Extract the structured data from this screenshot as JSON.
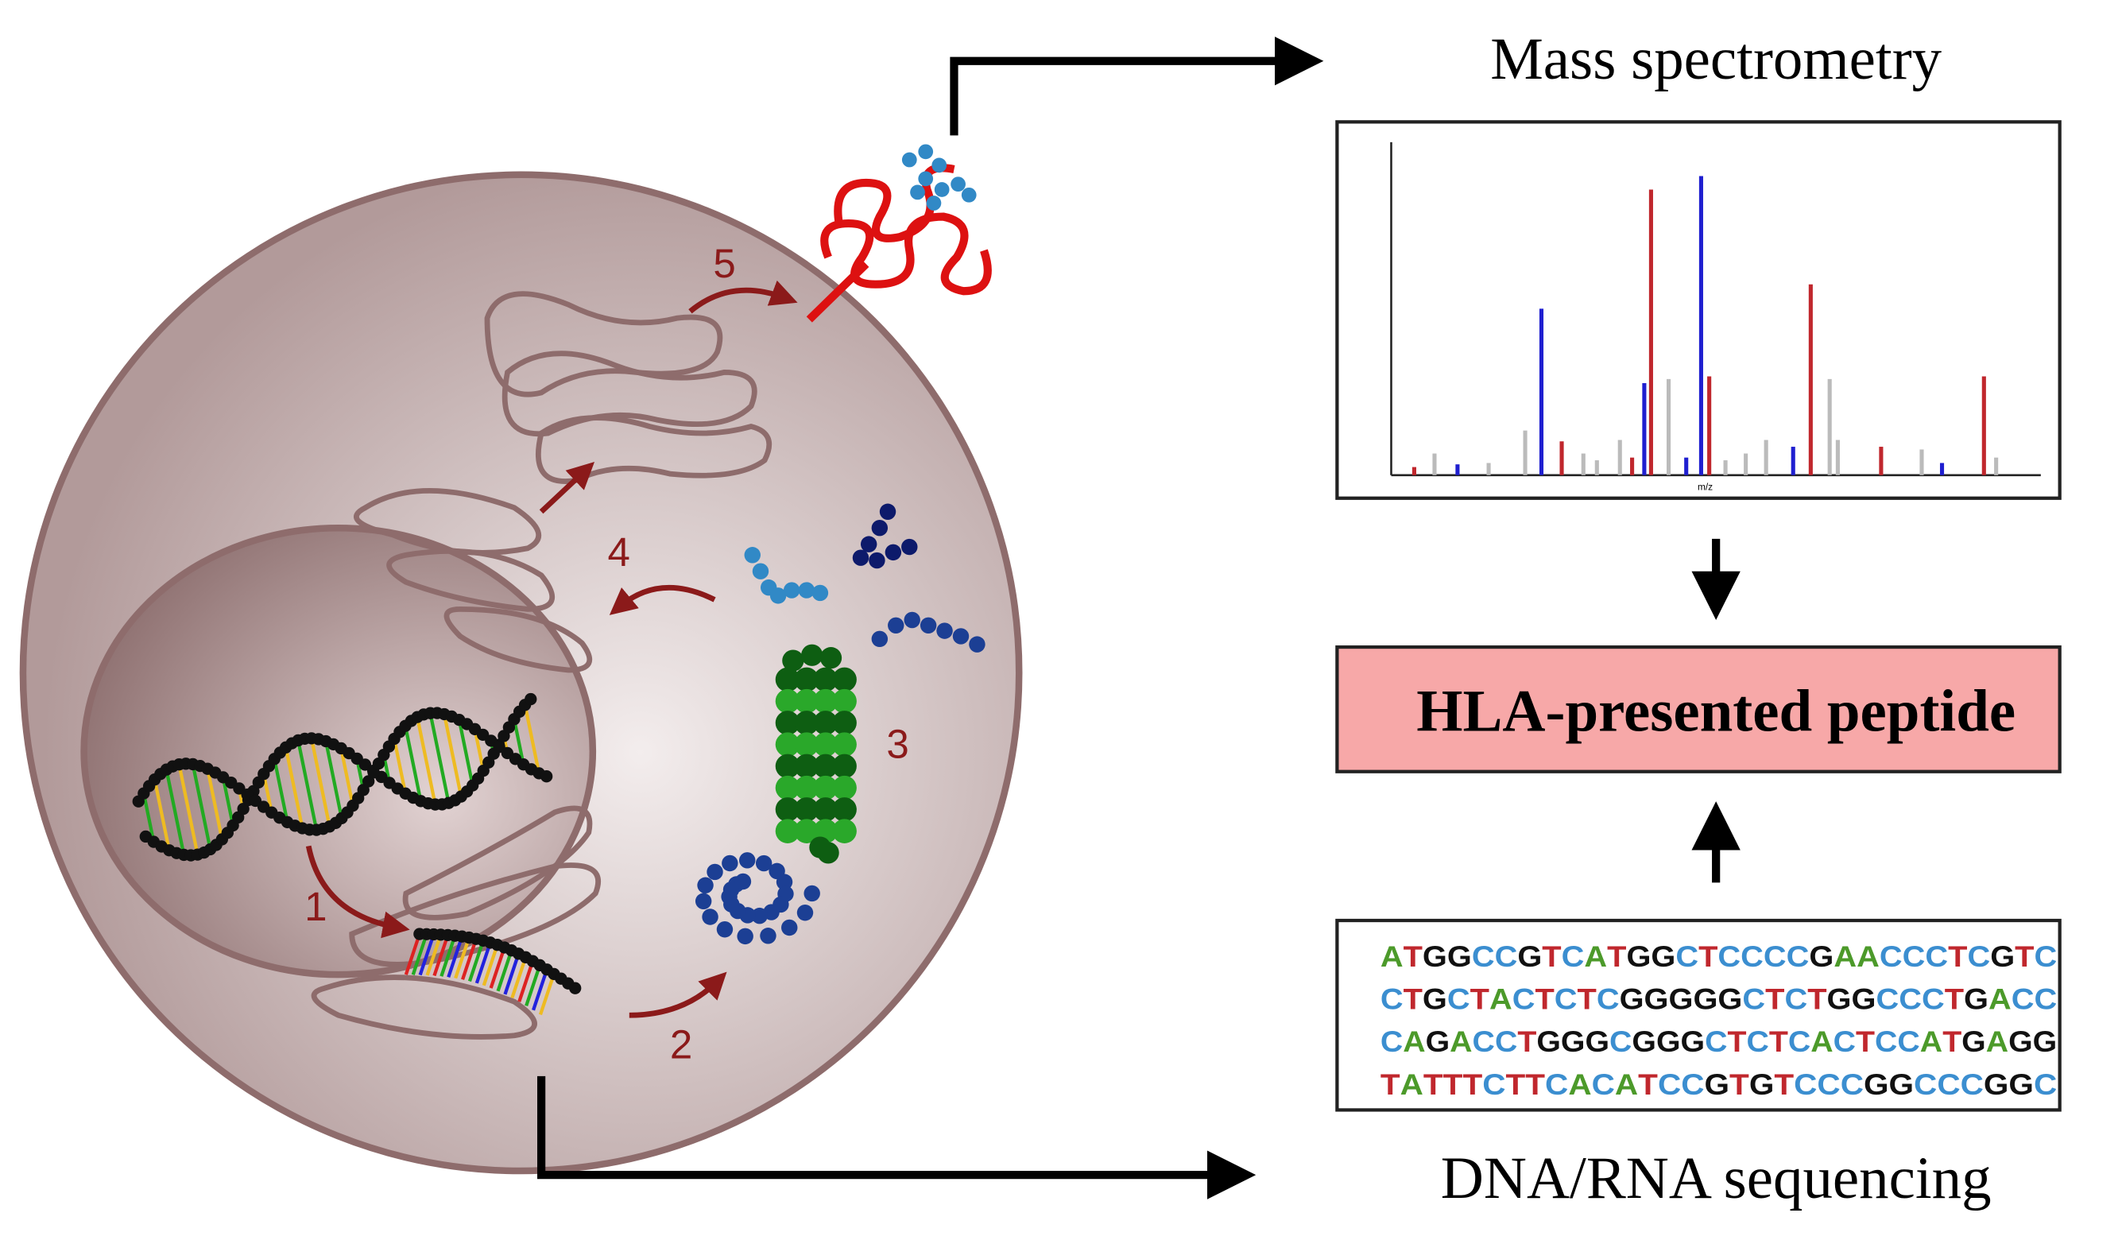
{
  "top_label": "Mass spectrometry",
  "spectrum": {
    "x_label": "m/z"
  },
  "result": "HLA-presented peptide",
  "bottom_label": "DNA/RNA sequencing",
  "sequence": [
    "ATGGCCGTCATGGCTCCCCGAACCCTCGTC",
    "CTGCTACTCTCGGGGGCTCTGGCCCTGACC",
    "CAGACCTGGGCGGGCTCTCACTCCATGAGG",
    "TATTTCTTCACATCCGTGTCCCGGCCCGGC"
  ],
  "steps": [
    "1",
    "2",
    "3",
    "4",
    "5"
  ]
}
